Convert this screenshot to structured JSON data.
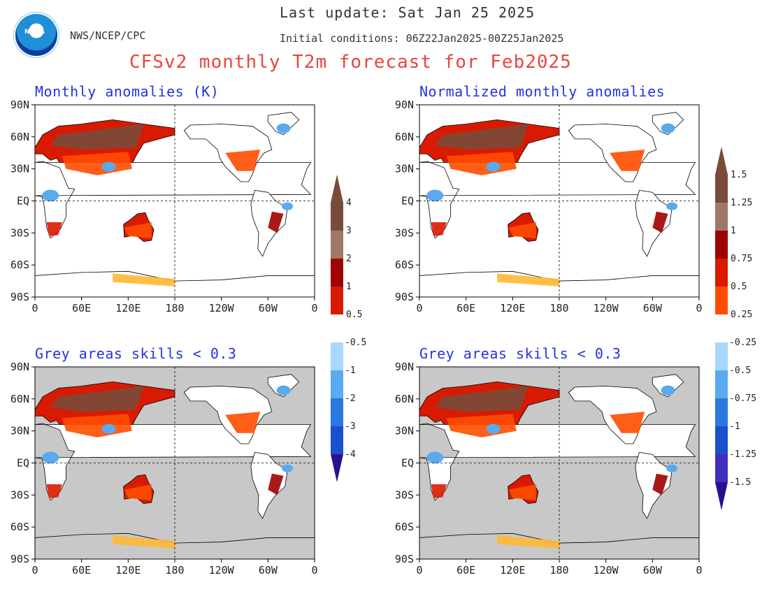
{
  "header": {
    "agency": "NWS/NCEP/CPC",
    "last_update": "Last update: Sat Jan 25 2025",
    "initial_conditions": "Initial conditions: 06Z22Jan2025-00Z25Jan2025",
    "title": "CFSv2 monthly T2m forecast for Feb2025",
    "logo_text": "NOAA"
  },
  "colors": {
    "title": "#e8463c",
    "panel_title": "#2233dd",
    "grey_mask": "#c8c8c8",
    "warm_scale": [
      "#ffb833",
      "#ff4d00",
      "#d91a00",
      "#a00000",
      "#a07868",
      "#7a4b3a"
    ],
    "cold_scale": [
      "#a8d8ff",
      "#5aaaf0",
      "#2a78e0",
      "#1a50d0",
      "#4030c0",
      "#2a1090"
    ]
  },
  "chart_data": [
    {
      "type": "heatmap",
      "title": "Monthly anomalies (K)",
      "x_ticks": [
        "0",
        "60E",
        "120E",
        "180",
        "120W",
        "60W",
        "0"
      ],
      "y_ticks": [
        "90N",
        "60N",
        "30N",
        "EQ",
        "30S",
        "60S",
        "90S"
      ],
      "xlim": [
        0,
        360
      ],
      "ylim": [
        -90,
        90
      ],
      "grey_mask": false,
      "colorbar": "absolute"
    },
    {
      "type": "heatmap",
      "title": "Normalized monthly anomalies",
      "x_ticks": [
        "0",
        "60E",
        "120E",
        "180",
        "120W",
        "60W",
        "0"
      ],
      "y_ticks": [
        "90N",
        "60N",
        "30N",
        "EQ",
        "30S",
        "60S",
        "90S"
      ],
      "xlim": [
        0,
        360
      ],
      "ylim": [
        -90,
        90
      ],
      "grey_mask": false,
      "colorbar": "normalized"
    },
    {
      "type": "heatmap",
      "title": "Grey areas skills < 0.3",
      "x_ticks": [
        "0",
        "60E",
        "120E",
        "180",
        "120W",
        "60W",
        "0"
      ],
      "y_ticks": [
        "90N",
        "60N",
        "30N",
        "EQ",
        "30S",
        "60S",
        "90S"
      ],
      "xlim": [
        0,
        360
      ],
      "ylim": [
        -90,
        90
      ],
      "grey_mask": true,
      "colorbar": "absolute"
    },
    {
      "type": "heatmap",
      "title": "Grey areas skills < 0.3",
      "x_ticks": [
        "0",
        "60E",
        "120E",
        "180",
        "120W",
        "60W",
        "0"
      ],
      "y_ticks": [
        "90N",
        "60N",
        "30N",
        "EQ",
        "30S",
        "60S",
        "90S"
      ],
      "xlim": [
        0,
        360
      ],
      "ylim": [
        -90,
        90
      ],
      "grey_mask": true,
      "colorbar": "normalized"
    }
  ],
  "colorbars": {
    "absolute": {
      "warm_labels": [
        "4",
        "3",
        "2",
        "1",
        "0.5"
      ],
      "cold_labels": [
        "-0.5",
        "-1",
        "-2",
        "-3",
        "-4"
      ]
    },
    "normalized": {
      "warm_labels": [
        "1.5",
        "1.25",
        "1",
        "0.75",
        "0.5",
        "0.25"
      ],
      "cold_labels": [
        "-0.25",
        "-0.5",
        "-0.75",
        "-1",
        "-1.25",
        "-1.5"
      ]
    }
  }
}
